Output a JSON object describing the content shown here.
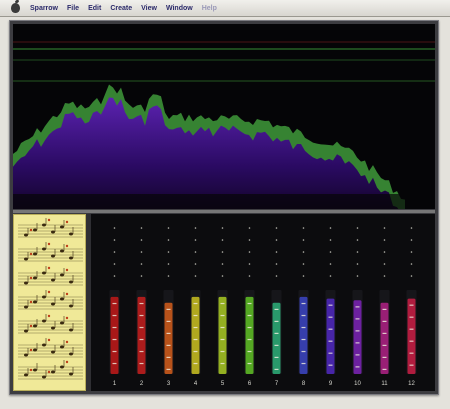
{
  "menubar": {
    "items": [
      {
        "label": "Sparrow",
        "enabled": true
      },
      {
        "label": "File",
        "enabled": true
      },
      {
        "label": "Edit",
        "enabled": true
      },
      {
        "label": "Create",
        "enabled": true
      },
      {
        "label": "View",
        "enabled": true
      },
      {
        "label": "Window",
        "enabled": true
      },
      {
        "label": "Help",
        "enabled": false
      }
    ]
  },
  "colors": {
    "spectrum_green": "#3f9a3a",
    "spectrum_violet": "#5b22b0",
    "spectrum_deep": "#2a0a62",
    "guide_line": "#2f7a2f",
    "notes_paper": "#f0e998",
    "meter_colors": [
      "#b01818",
      "#b41c1c",
      "#c0551a",
      "#b8b020",
      "#9bb822",
      "#58b024",
      "#2aa070",
      "#3840b4",
      "#4a26b0",
      "#7222a8",
      "#a0207a",
      "#b81c40"
    ]
  },
  "meters": {
    "channel_numbers": [
      "1",
      "2",
      "3",
      "4",
      "5",
      "6",
      "7",
      "8",
      "9",
      "10",
      "11",
      "12"
    ],
    "levels": [
      0.62,
      0.62,
      0.55,
      0.62,
      0.62,
      0.62,
      0.55,
      0.62,
      0.6,
      0.58,
      0.55,
      0.6
    ]
  }
}
